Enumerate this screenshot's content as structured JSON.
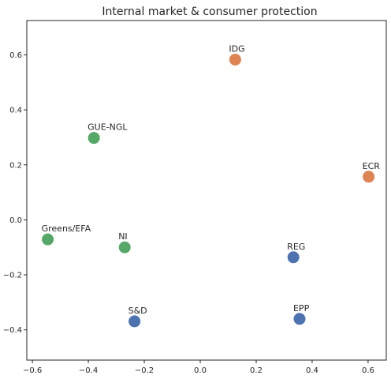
{
  "chart_data": {
    "type": "scatter",
    "title": "Internal market & consumer protection",
    "xlabel": "",
    "ylabel": "",
    "xlim": [
      -0.62,
      0.665
    ],
    "ylim": [
      -0.51,
      0.725
    ],
    "xticks": [
      -0.6,
      -0.4,
      -0.2,
      0.0,
      0.2,
      0.4,
      0.6
    ],
    "xtick_labels": [
      "−0.6",
      "−0.4",
      "−0.2",
      "0.0",
      "0.2",
      "0.4",
      "0.6"
    ],
    "yticks": [
      -0.4,
      -0.2,
      0.0,
      0.2,
      0.4,
      0.6
    ],
    "ytick_labels": [
      "−0.4",
      "−0.2",
      "0.0",
      "0.2",
      "0.4",
      "0.6"
    ],
    "grid": false,
    "points": [
      {
        "label": "IDG",
        "x": 0.125,
        "y": 0.583,
        "color": "#dd8452"
      },
      {
        "label": "ECR",
        "x": 0.602,
        "y": 0.157,
        "color": "#dd8452"
      },
      {
        "label": "GUE-NGL",
        "x": -0.38,
        "y": 0.298,
        "color": "#55a868"
      },
      {
        "label": "Greens/EFA",
        "x": -0.545,
        "y": -0.071,
        "color": "#55a868"
      },
      {
        "label": "NI",
        "x": -0.27,
        "y": -0.1,
        "color": "#55a868"
      },
      {
        "label": "REG",
        "x": 0.333,
        "y": -0.136,
        "color": "#4c72b0"
      },
      {
        "label": "S&D",
        "x": -0.235,
        "y": -0.369,
        "color": "#4c72b0"
      },
      {
        "label": "EPP",
        "x": 0.355,
        "y": -0.36,
        "color": "#4c72b0"
      }
    ]
  }
}
